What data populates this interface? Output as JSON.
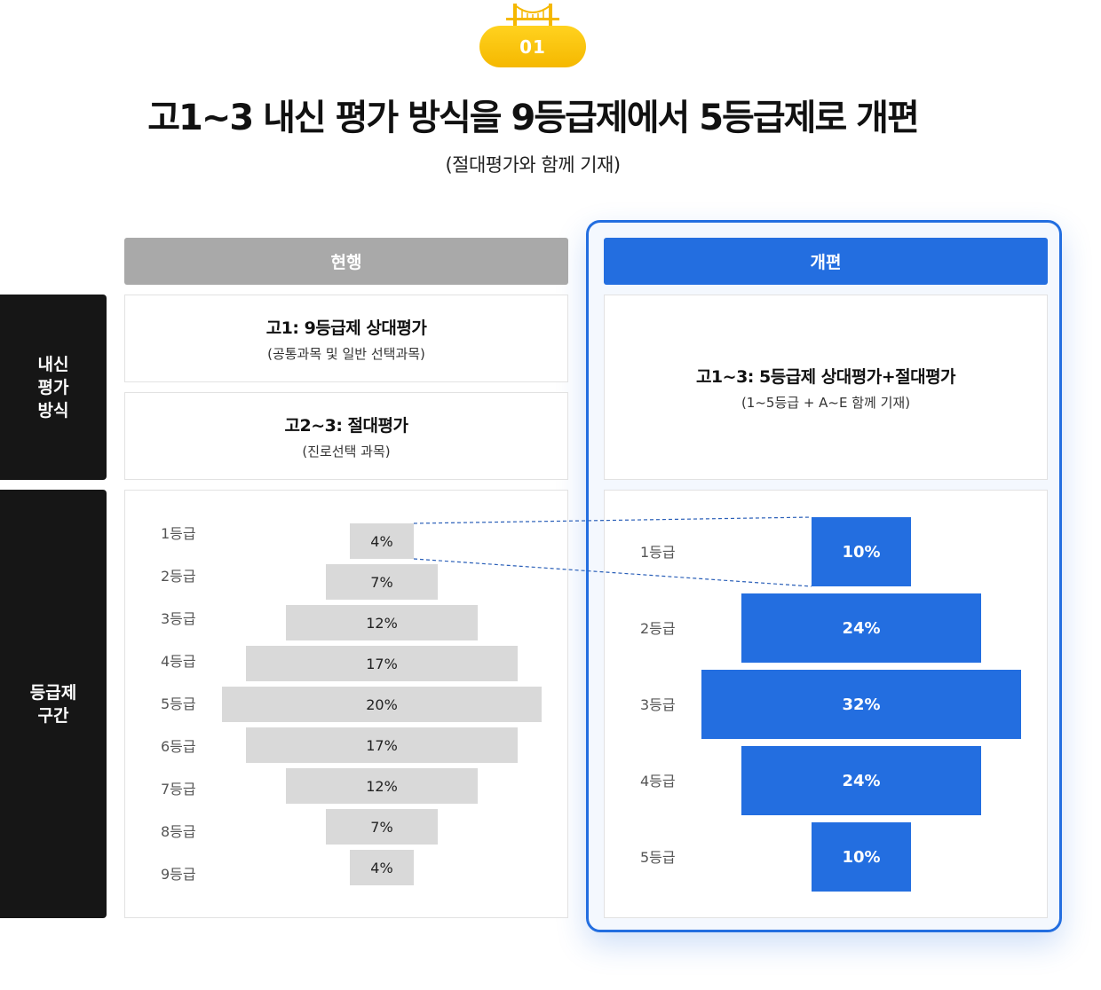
{
  "badge": {
    "number": "01"
  },
  "title": "고1~3 내신 평가 방식을 9등급제에서 5등급제로 개편",
  "subtitle": "(절대평가와 함께 기재)",
  "columns": {
    "current": "현행",
    "reform": "개편"
  },
  "row_labels": {
    "method": "내신\n평가\n방식",
    "grades": "등급제\n구간"
  },
  "current": {
    "method_1": {
      "title": "고1: 9등급제 상대평가",
      "note": "(공통과목 및 일반 선택과목)"
    },
    "method_2": {
      "title": "고2~3: 절대평가",
      "note": "(진로선택 과목)"
    }
  },
  "reform": {
    "method": {
      "title": "고1~3: 5등급제 상대평가+절대평가",
      "note": "(1~5등급 + A~E 함께 기재)"
    }
  },
  "chart_data": [
    {
      "type": "bar",
      "categories": [
        "1등급",
        "2등급",
        "3등급",
        "4등급",
        "5등급",
        "6등급",
        "7등급",
        "8등급",
        "9등급"
      ],
      "values": [
        4,
        7,
        12,
        17,
        20,
        17,
        12,
        7,
        4
      ],
      "labels": [
        "4%",
        "7%",
        "12%",
        "17%",
        "20%",
        "17%",
        "12%",
        "7%",
        "4%"
      ],
      "unit": "%",
      "color": "#d9d9d9"
    },
    {
      "type": "bar",
      "categories": [
        "1등급",
        "2등급",
        "3등급",
        "4등급",
        "5등급"
      ],
      "values": [
        10,
        24,
        32,
        24,
        10
      ],
      "labels": [
        "10%",
        "24%",
        "32%",
        "24%",
        "10%"
      ],
      "unit": "%",
      "color": "#236ee0"
    }
  ],
  "colors": {
    "accent": "#236ee0",
    "badge": "#ffc80a",
    "current_header": "#a9a9a9",
    "label_bg": "#161616"
  }
}
